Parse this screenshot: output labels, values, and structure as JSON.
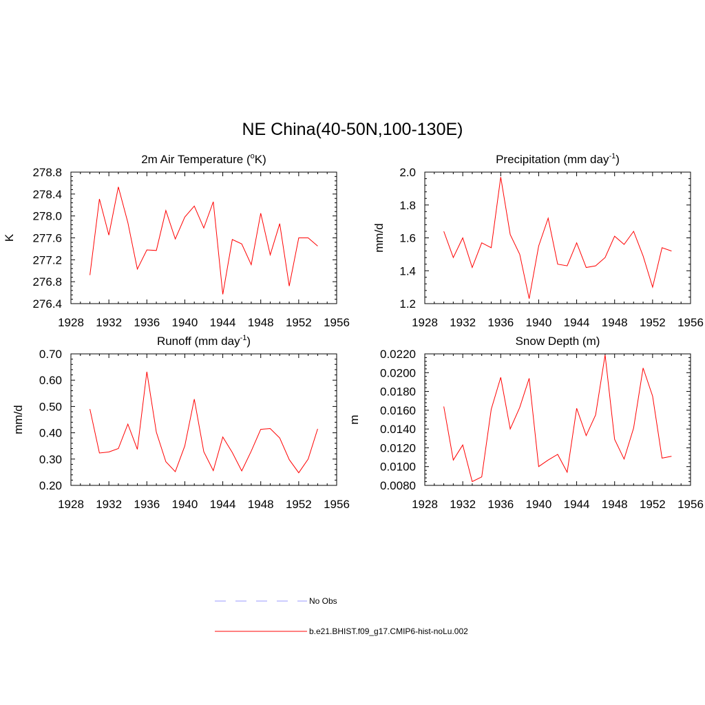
{
  "figure": {
    "title": "NE China(40-50N,100-130E)"
  },
  "legend": {
    "placement": "bottom-center",
    "entries": [
      {
        "label": "No Obs",
        "color": "#9999ff",
        "style": "dashed"
      },
      {
        "label": "b.e21.BHIST.f09_g17.CMIP6-hist-noLu.002",
        "color": "#ff0000",
        "style": "solid"
      }
    ]
  },
  "chart_data": [
    {
      "type": "line",
      "title": "2m Air Temperature (",
      "title_sup": "o",
      "title_suffix": "K)",
      "ylabel": "K",
      "xlim": [
        1928,
        1956
      ],
      "xticks": [
        1928,
        1932,
        1936,
        1940,
        1944,
        1948,
        1952,
        1956
      ],
      "ylim": [
        276.4,
        278.8
      ],
      "yticks": [
        "276.4",
        "276.8",
        "277.2",
        "277.6",
        "278.0",
        "278.4",
        "278.8"
      ],
      "series": [
        {
          "color": "#ff0000",
          "x": [
            1930,
            1931,
            1932,
            1933,
            1934,
            1935,
            1936,
            1937,
            1938,
            1939,
            1940,
            1941,
            1942,
            1943,
            1944,
            1945,
            1946,
            1947,
            1948,
            1949,
            1950,
            1951,
            1952,
            1953,
            1954
          ],
          "values": [
            276.92,
            278.31,
            277.65,
            278.53,
            277.88,
            277.03,
            277.38,
            277.37,
            278.1,
            277.58,
            277.98,
            278.18,
            277.78,
            278.26,
            276.57,
            277.57,
            277.49,
            277.11,
            278.05,
            277.29,
            277.86,
            276.72,
            277.6,
            277.6,
            277.45
          ]
        }
      ]
    },
    {
      "type": "line",
      "title": "Precipitation (mm day",
      "title_sup": "-1",
      "title_suffix": ")",
      "ylabel": "mm/d",
      "xlim": [
        1928,
        1956
      ],
      "xticks": [
        1928,
        1932,
        1936,
        1940,
        1944,
        1948,
        1952,
        1956
      ],
      "ylim": [
        1.2,
        2.0
      ],
      "yticks": [
        "1.2",
        "1.4",
        "1.6",
        "1.8",
        "2.0"
      ],
      "series": [
        {
          "color": "#ff0000",
          "x": [
            1930,
            1931,
            1932,
            1933,
            1934,
            1935,
            1936,
            1937,
            1938,
            1939,
            1940,
            1941,
            1942,
            1943,
            1944,
            1945,
            1946,
            1947,
            1948,
            1949,
            1950,
            1951,
            1952,
            1953,
            1954
          ],
          "values": [
            1.64,
            1.48,
            1.6,
            1.42,
            1.57,
            1.54,
            1.97,
            1.62,
            1.5,
            1.23,
            1.55,
            1.72,
            1.44,
            1.43,
            1.57,
            1.42,
            1.43,
            1.48,
            1.61,
            1.56,
            1.64,
            1.49,
            1.3,
            1.54,
            1.52
          ]
        }
      ]
    },
    {
      "type": "line",
      "title": "Runoff (mm day",
      "title_sup": "-1",
      "title_suffix": ")",
      "ylabel": "mm/d",
      "xlim": [
        1928,
        1956
      ],
      "xticks": [
        1928,
        1932,
        1936,
        1940,
        1944,
        1948,
        1952,
        1956
      ],
      "ylim": [
        0.2,
        0.7
      ],
      "yticks": [
        "0.20",
        "0.30",
        "0.40",
        "0.50",
        "0.60",
        "0.70"
      ],
      "series": [
        {
          "color": "#ff0000",
          "x": [
            1930,
            1931,
            1932,
            1933,
            1934,
            1935,
            1936,
            1937,
            1938,
            1939,
            1940,
            1941,
            1942,
            1943,
            1944,
            1945,
            1946,
            1947,
            1948,
            1949,
            1950,
            1951,
            1952,
            1953,
            1954
          ],
          "values": [
            0.49,
            0.323,
            0.327,
            0.34,
            0.433,
            0.337,
            0.632,
            0.402,
            0.29,
            0.252,
            0.35,
            0.528,
            0.328,
            0.256,
            0.384,
            0.325,
            0.255,
            0.33,
            0.413,
            0.416,
            0.38,
            0.298,
            0.248,
            0.3,
            0.415
          ]
        }
      ]
    },
    {
      "type": "line",
      "title": "Snow Depth (m)",
      "title_sup": "",
      "title_suffix": "",
      "ylabel": "m",
      "xlim": [
        1928,
        1956
      ],
      "xticks": [
        1928,
        1932,
        1936,
        1940,
        1944,
        1948,
        1952,
        1956
      ],
      "ylim": [
        0.008,
        0.022
      ],
      "yticks": [
        "0.0080",
        "0.0100",
        "0.0120",
        "0.0140",
        "0.0160",
        "0.0180",
        "0.0200",
        "0.0220"
      ],
      "series": [
        {
          "color": "#ff0000",
          "x": [
            1930,
            1931,
            1932,
            1933,
            1934,
            1935,
            1936,
            1937,
            1938,
            1939,
            1940,
            1941,
            1942,
            1943,
            1944,
            1945,
            1946,
            1947,
            1948,
            1949,
            1950,
            1951,
            1952,
            1953,
            1954
          ],
          "values": [
            0.0164,
            0.0107,
            0.0123,
            0.0084,
            0.0089,
            0.0161,
            0.0195,
            0.014,
            0.0163,
            0.0194,
            0.01,
            0.0107,
            0.0113,
            0.0094,
            0.0162,
            0.0133,
            0.0155,
            0.0219,
            0.0129,
            0.0108,
            0.0141,
            0.0205,
            0.0175,
            0.0109,
            0.0111
          ]
        }
      ]
    }
  ]
}
